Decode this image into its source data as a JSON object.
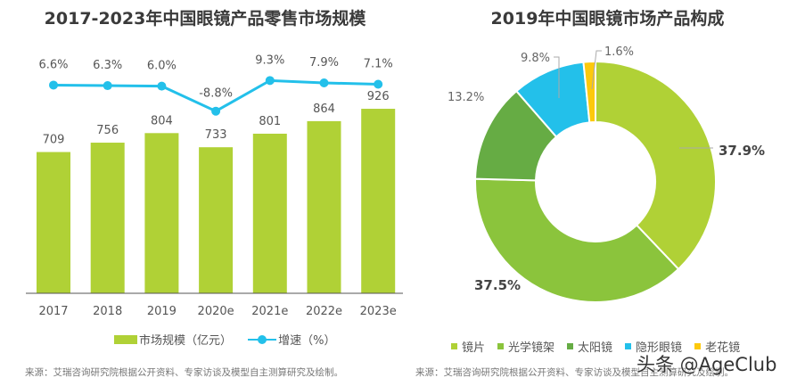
{
  "chart_data": [
    {
      "type": "bar",
      "title": "2017-2023年中国眼镜产品零售市场规模",
      "xlabel": "",
      "ylabel": "",
      "categories": [
        "2017",
        "2018",
        "2019",
        "2020e",
        "2021e",
        "2022e",
        "2023e"
      ],
      "series": [
        {
          "name": "市场规模（亿元）",
          "type": "bar",
          "color": "#b0d136",
          "values": [
            709,
            756,
            804,
            733,
            801,
            864,
            926
          ],
          "labels": [
            "709",
            "756",
            "804",
            "733",
            "801",
            "864",
            "926"
          ]
        },
        {
          "name": "增速（%）",
          "type": "line",
          "color": "#23c0ea",
          "values": [
            6.6,
            6.3,
            6.0,
            -8.8,
            9.3,
            7.9,
            7.1
          ],
          "labels": [
            "6.6%",
            "6.3%",
            "6.0%",
            "-8.8%",
            "9.3%",
            "7.9%",
            "7.1%"
          ]
        }
      ],
      "grid": false,
      "legend": "bottom",
      "legend_entries": [
        "市场规模（亿元）",
        "增速（%）"
      ],
      "source": "来源：艾瑞咨询研究院根据公开资料、专家访谈及模型自主测算研究及绘制。"
    },
    {
      "type": "pie",
      "donut": true,
      "title": "2019年中国眼镜市场产品构成",
      "slices": [
        {
          "name": "镜片",
          "value": 37.9,
          "label": "37.9%",
          "color": "#b0d136"
        },
        {
          "name": "光学镜架",
          "value": 37.5,
          "label": "37.5%",
          "color": "#8bc43c"
        },
        {
          "name": "太阳镜",
          "value": 13.2,
          "label": "13.2%",
          "color": "#66ac44"
        },
        {
          "name": "隐形眼镜",
          "value": 9.8,
          "label": "9.8%",
          "color": "#23c0ea"
        },
        {
          "name": "老花镜",
          "value": 1.6,
          "label": "1.6%",
          "color": "#fdc90c"
        }
      ],
      "legend": "bottom",
      "source": "来源：艾瑞咨询研究院根据公开资料、专家访谈及模型自主测算研究及绘制。"
    }
  ],
  "watermark": "头条 @AgeClub"
}
